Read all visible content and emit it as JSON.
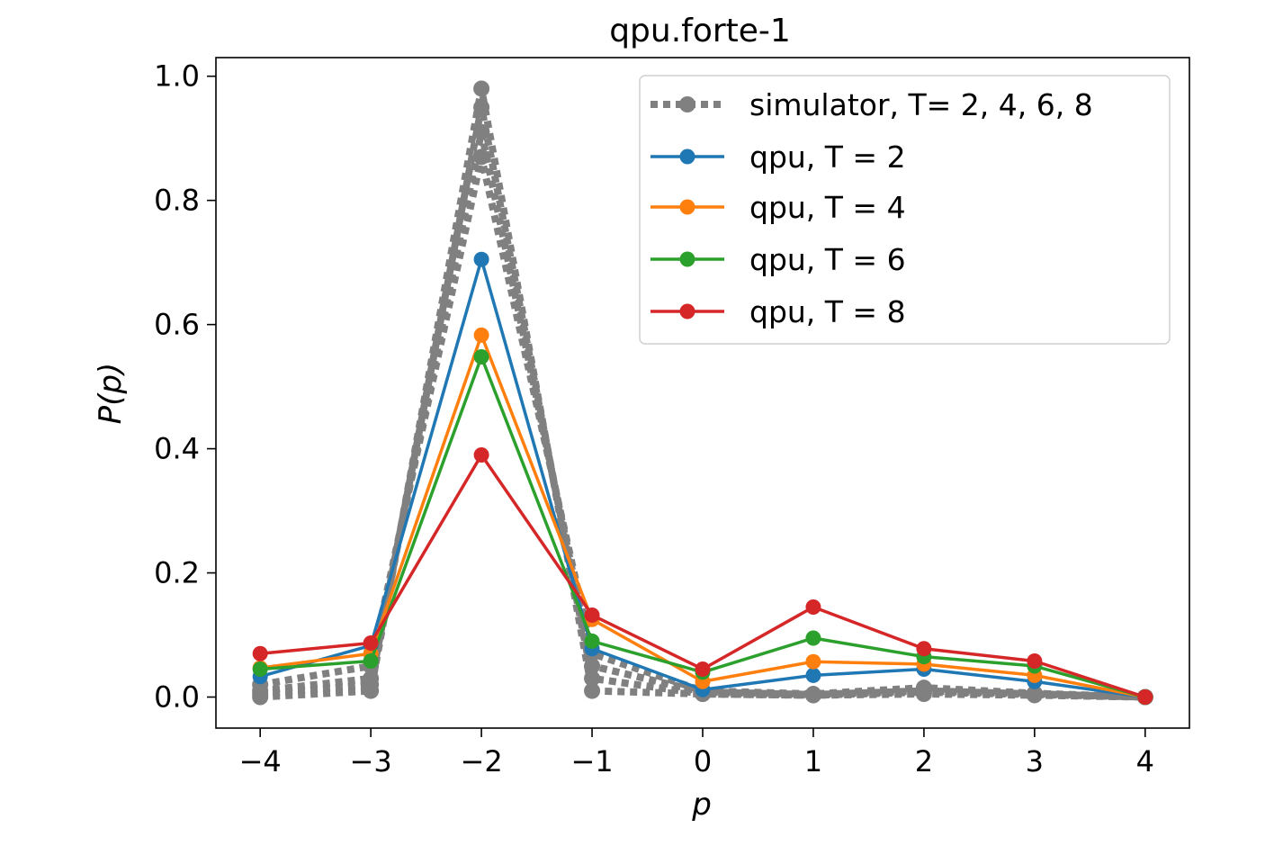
{
  "chart_data": {
    "type": "line",
    "title": "qpu.forte-1",
    "xlabel": "p",
    "ylabel": "P(p)",
    "xlim": [
      -4.4,
      4.4
    ],
    "ylim": [
      -0.05,
      1.03
    ],
    "xticks": [
      -4,
      -3,
      -2,
      -1,
      0,
      1,
      2,
      3,
      4
    ],
    "xtick_labels": [
      "−4",
      "−3",
      "−2",
      "−1",
      "0",
      "1",
      "2",
      "3",
      "4"
    ],
    "yticks": [
      0.0,
      0.2,
      0.4,
      0.6,
      0.8,
      1.0
    ],
    "ytick_labels": [
      "0.0",
      "0.2",
      "0.4",
      "0.6",
      "0.8",
      "1.0"
    ],
    "grid": false,
    "legend_position": "top-right",
    "x": [
      -4,
      -3,
      -2,
      -1,
      0,
      1,
      2,
      3,
      4
    ],
    "simulator": {
      "name": "simulator, T= 2, 4, 6, 8",
      "color": "#808080",
      "series": [
        [
          0.0,
          0.01,
          0.98,
          0.01,
          0.005,
          0.003,
          0.005,
          0.003,
          0.0
        ],
        [
          0.005,
          0.02,
          0.95,
          0.03,
          0.005,
          0.003,
          0.008,
          0.004,
          0.0
        ],
        [
          0.01,
          0.03,
          0.91,
          0.05,
          0.008,
          0.004,
          0.01,
          0.005,
          0.0
        ],
        [
          0.02,
          0.05,
          0.87,
          0.07,
          0.01,
          0.005,
          0.015,
          0.006,
          0.0
        ]
      ]
    },
    "series": [
      {
        "name": "qpu, T = 2",
        "color": "#1f77b4",
        "values": [
          0.033,
          0.083,
          0.705,
          0.078,
          0.012,
          0.035,
          0.045,
          0.025,
          0.0
        ]
      },
      {
        "name": "qpu, T = 4",
        "color": "#ff7f0e",
        "values": [
          0.047,
          0.07,
          0.583,
          0.125,
          0.025,
          0.057,
          0.053,
          0.035,
          0.0
        ]
      },
      {
        "name": "qpu, T = 6",
        "color": "#2ca02c",
        "values": [
          0.045,
          0.058,
          0.548,
          0.09,
          0.04,
          0.095,
          0.065,
          0.05,
          0.0
        ]
      },
      {
        "name": "qpu, T = 8",
        "color": "#d62728",
        "values": [
          0.07,
          0.087,
          0.39,
          0.132,
          0.045,
          0.145,
          0.078,
          0.058,
          0.0
        ]
      }
    ]
  }
}
